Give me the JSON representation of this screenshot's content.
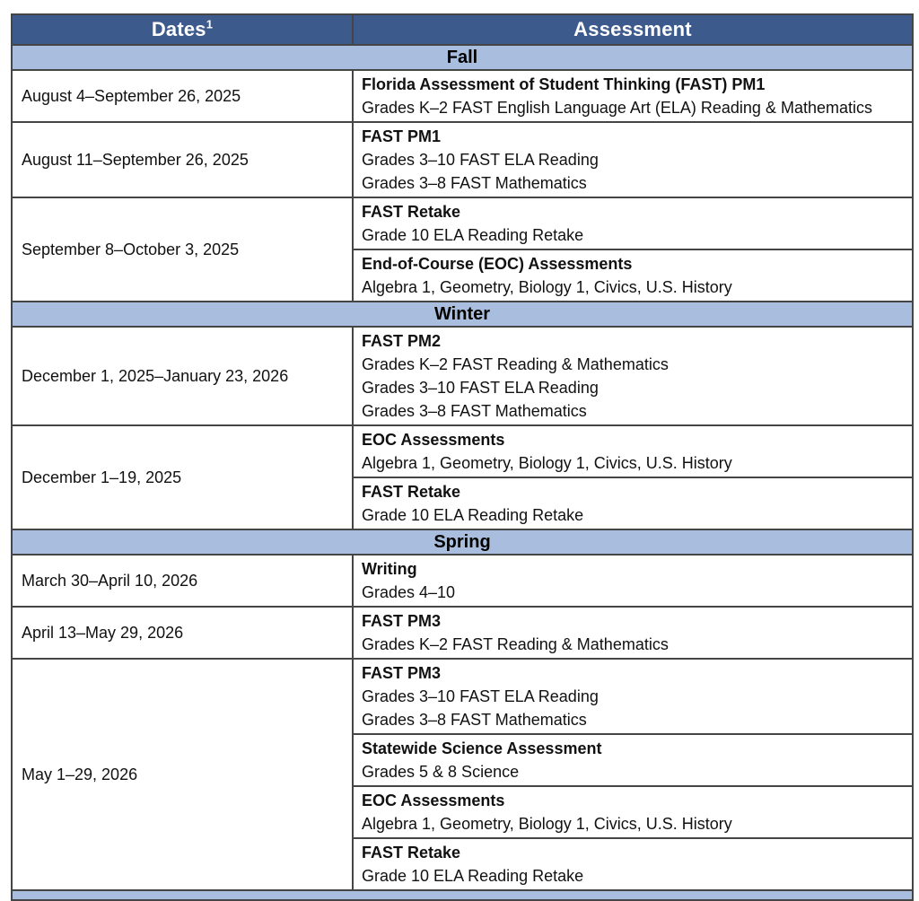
{
  "colors": {
    "header_bg": "#3D5A8C",
    "header_text": "#FFFFFF",
    "section_bg": "#A9BDDE",
    "border": "#454545",
    "body_text": "#111111",
    "row_bg": "#FFFFFF"
  },
  "header": {
    "dates_label": "Dates",
    "dates_superscript": "1",
    "assessment_label": "Assessment"
  },
  "sections": [
    {
      "title": "Fall",
      "rows": [
        {
          "date": "August 4–September 26, 2025",
          "assessments": [
            {
              "title": "Florida Assessment of Student Thinking (FAST) PM1",
              "lines": [
                "Grades K–2 FAST English Language Art (ELA) Reading & Mathematics"
              ]
            }
          ]
        },
        {
          "date": "August 11–September 26, 2025",
          "assessments": [
            {
              "title": "FAST PM1",
              "lines": [
                "Grades 3–10 FAST ELA Reading",
                "Grades 3–8 FAST Mathematics"
              ]
            }
          ]
        },
        {
          "date": "September 8–October 3, 2025",
          "assessments": [
            {
              "title": "FAST Retake",
              "lines": [
                "Grade 10 ELA Reading Retake"
              ]
            },
            {
              "title": "End-of-Course (EOC) Assessments",
              "lines": [
                "Algebra 1, Geometry, Biology 1, Civics, U.S. History"
              ]
            }
          ]
        }
      ]
    },
    {
      "title": "Winter",
      "rows": [
        {
          "date": "December 1, 2025–January 23, 2026",
          "assessments": [
            {
              "title": "FAST PM2",
              "lines": [
                "Grades K–2 FAST Reading & Mathematics",
                "Grades 3–10 FAST ELA Reading",
                "Grades 3–8 FAST Mathematics"
              ]
            }
          ]
        },
        {
          "date": "December 1–19, 2025",
          "assessments": [
            {
              "title": "EOC Assessments",
              "lines": [
                "Algebra 1, Geometry, Biology 1, Civics, U.S. History"
              ]
            },
            {
              "title": "FAST Retake",
              "lines": [
                "Grade 10 ELA Reading Retake"
              ]
            }
          ]
        }
      ]
    },
    {
      "title": "Spring",
      "rows": [
        {
          "date": "March 30–April 10, 2026",
          "assessments": [
            {
              "title": "Writing",
              "lines": [
                "Grades 4–10"
              ]
            }
          ]
        },
        {
          "date": "April 13–May 29, 2026",
          "assessments": [
            {
              "title": "FAST PM3",
              "lines": [
                "Grades K–2 FAST Reading & Mathematics"
              ]
            }
          ]
        },
        {
          "date": "May 1–29, 2026",
          "assessments": [
            {
              "title": "FAST PM3",
              "lines": [
                "Grades 3–10 FAST ELA Reading",
                "Grades 3–8 FAST Mathematics"
              ]
            },
            {
              "title": "Statewide Science Assessment",
              "lines": [
                "Grades 5 & 8 Science"
              ]
            },
            {
              "title": "EOC Assessments",
              "lines": [
                "Algebra 1, Geometry, Biology 1, Civics, U.S. History"
              ]
            },
            {
              "title": "FAST Retake",
              "lines": [
                "Grade 10 ELA Reading Retake"
              ]
            }
          ]
        }
      ]
    }
  ]
}
